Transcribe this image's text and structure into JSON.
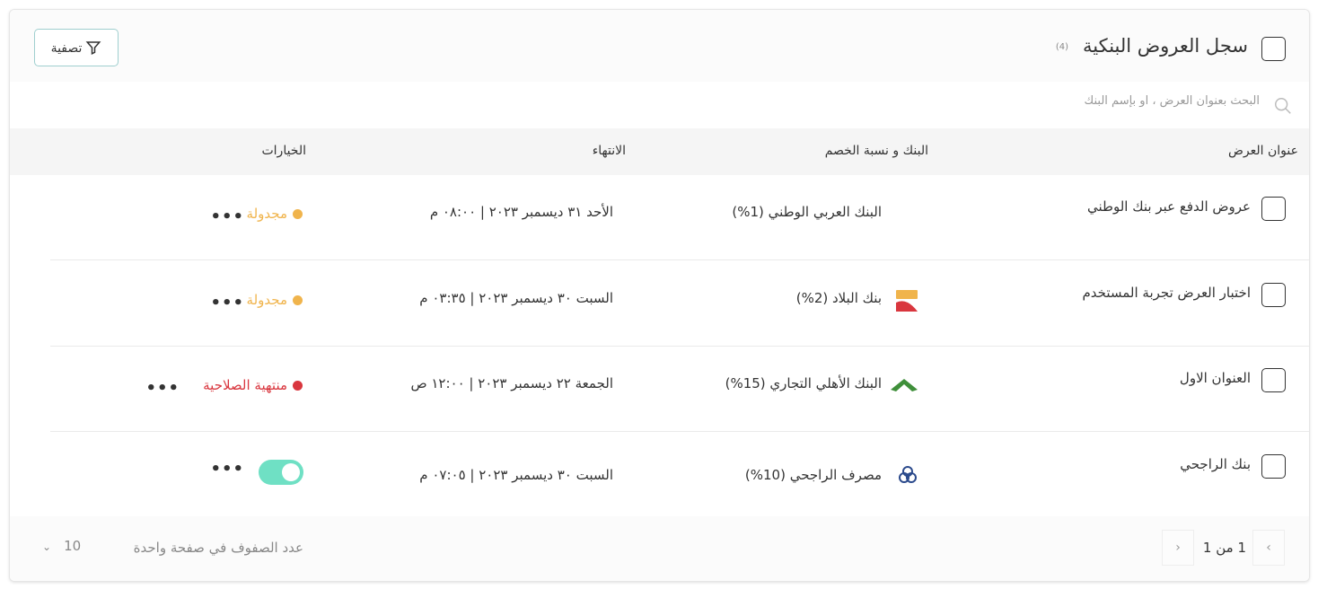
{
  "header": {
    "title": "سجل العروض البنكية",
    "count": "(4)",
    "filter_label": "تصفية"
  },
  "search": {
    "placeholder": "البحث بعنوان العرض ، او بإسم البنك",
    "value": ""
  },
  "columns": [
    "عنوان العرض",
    "البنك و نسبة الخصم",
    "الانتهاء",
    "الخيارات"
  ],
  "rows": [
    {
      "title": "عروض الدفع عبر بنك الوطني",
      "bank": "البنك العربي الوطني (1%)",
      "logo": "anb-logo",
      "end": "الأحد ٣١ ديسمبر ٢٠٢٣ | ٠٨:٠٠ م",
      "status": "مجدولة",
      "status_color": "#f0b44c",
      "toggle": null
    },
    {
      "title": "اختبار العرض تجربة المستخدم",
      "bank": "بنك البلاد (2%)",
      "logo": "albilad-logo",
      "end": "السبت ٣٠ ديسمبر ٢٠٢٣ | ٠٣:٣٥ م",
      "status": "مجدولة",
      "status_color": "#f0b44c",
      "toggle": null
    },
    {
      "title": "العنوان الاول",
      "bank": "البنك الأهلي التجاري (15%)",
      "logo": "snb-logo",
      "end": "الجمعة ٢٢ ديسمبر ٢٠٢٣ | ١٢:٠٠ ص",
      "status": "منتهية الصلاحية",
      "status_color": "#d9363e",
      "toggle": null
    },
    {
      "title": "بنك الراجحي",
      "bank": "مصرف الراجحي (10%)",
      "logo": "alrajhi-logo",
      "end": "السبت ٣٠ ديسمبر ٢٠٢٣ | ٠٧:٠٥ م",
      "status": "",
      "status_color": "#6fe0c4",
      "toggle": true
    }
  ],
  "footer": {
    "page_info": "1 من 1",
    "rows_per_page_label": "عدد الصفوف في صفحة واحدة",
    "rows_per_page": "10"
  },
  "colors": {
    "accent": "#6fe0c4",
    "scheduled": "#f0b44c",
    "expired": "#d9363e"
  }
}
